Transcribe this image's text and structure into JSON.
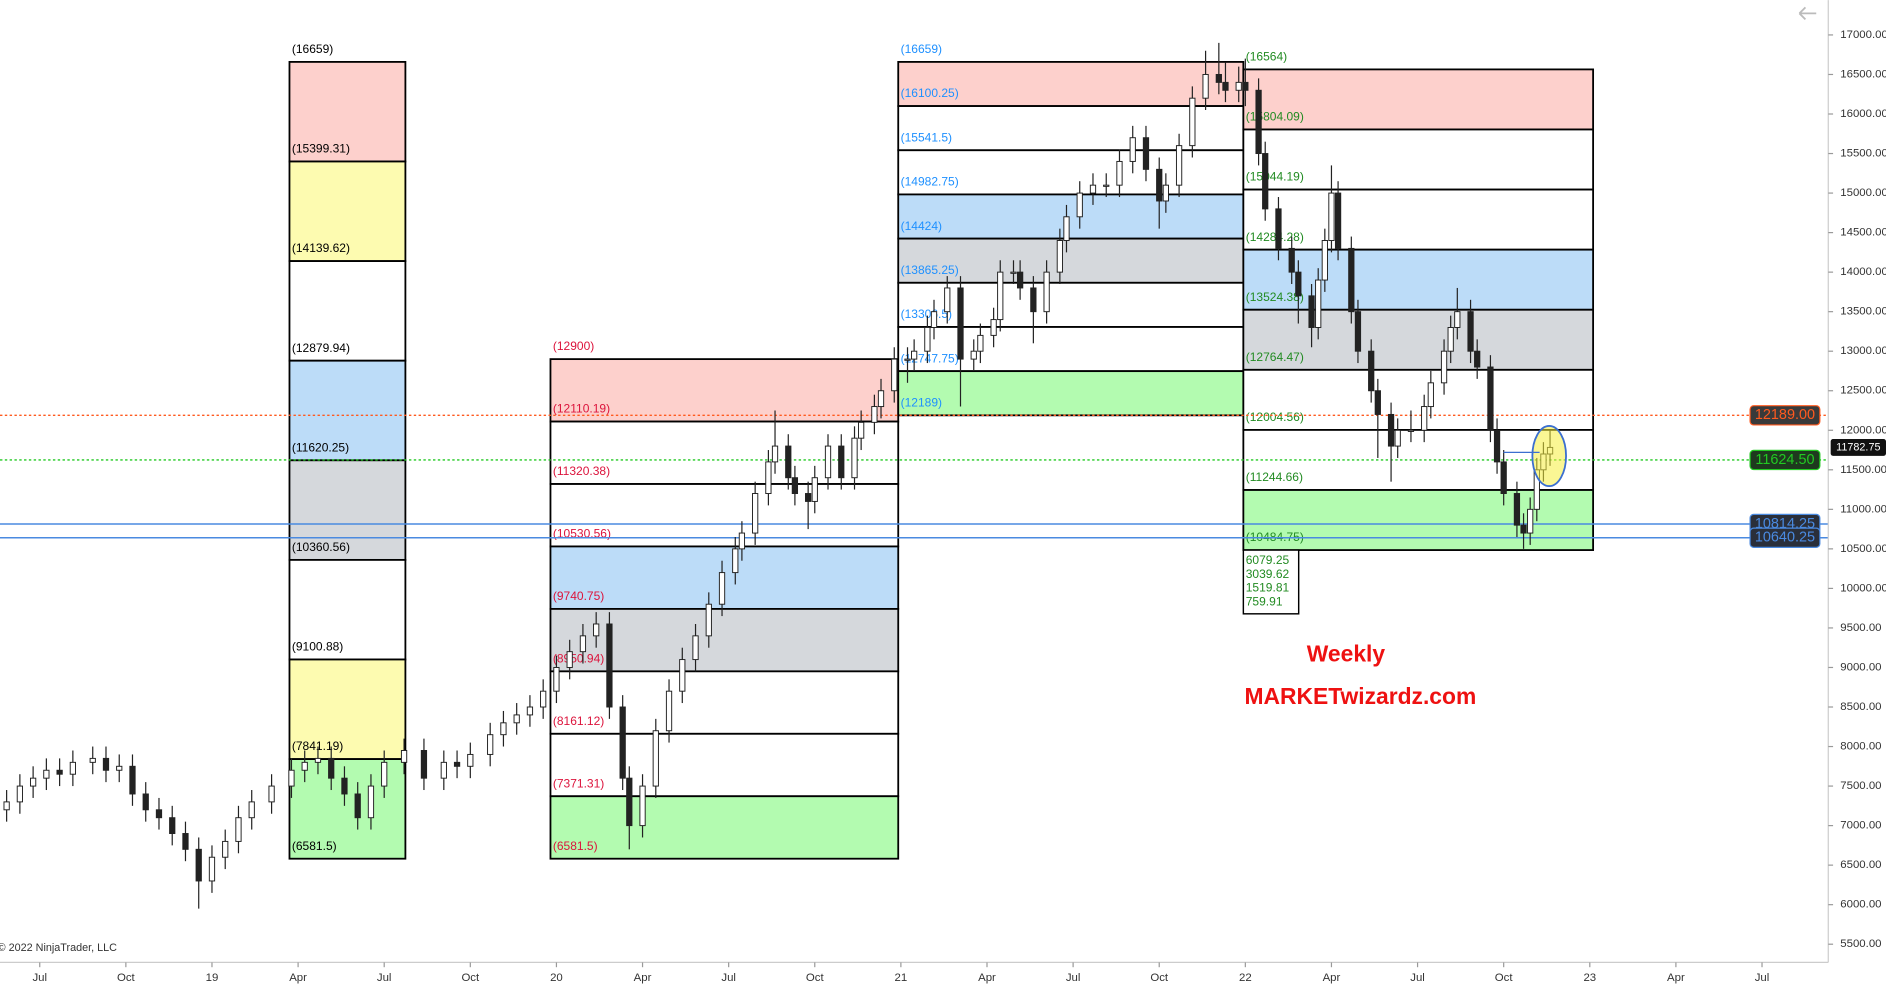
{
  "chart_data": {
    "type": "candlestick",
    "ylim": [
      5270,
      17440
    ],
    "yticks": [
      {
        "value": 5500,
        "label": "5500.00"
      },
      {
        "value": 6000,
        "label": "6000.00"
      },
      {
        "value": 6500,
        "label": "6500.00"
      },
      {
        "value": 7000,
        "label": "7000.00"
      },
      {
        "value": 7500,
        "label": "7500.00"
      },
      {
        "value": 8000,
        "label": "8000.00"
      },
      {
        "value": 8500,
        "label": "8500.00"
      },
      {
        "value": 9000,
        "label": "9000.00"
      },
      {
        "value": 9500,
        "label": "9500.00"
      },
      {
        "value": 10000,
        "label": "10000.00"
      },
      {
        "value": 10500,
        "label": "10500.00"
      },
      {
        "value": 11000,
        "label": "11000.00"
      },
      {
        "value": 11500,
        "label": "11500.00"
      },
      {
        "value": 12000,
        "label": "12000.00"
      },
      {
        "value": 12500,
        "label": "12500.00"
      },
      {
        "value": 13000,
        "label": "13000.00"
      },
      {
        "value": 13500,
        "label": "13500.00"
      },
      {
        "value": 14000,
        "label": "14000.00"
      },
      {
        "value": 14500,
        "label": "14500.00"
      },
      {
        "value": 15000,
        "label": "15000.00"
      },
      {
        "value": 15500,
        "label": "15500.00"
      },
      {
        "value": 16000,
        "label": "16000.00"
      },
      {
        "value": 16500,
        "label": "16500.00"
      },
      {
        "value": 17000,
        "label": "17000.00"
      }
    ],
    "xlim": [
      -6,
      270
    ],
    "xticks": [
      {
        "value": 0,
        "label": "Jul"
      },
      {
        "value": 13,
        "label": "Oct"
      },
      {
        "value": 26,
        "label": "19"
      },
      {
        "value": 39,
        "label": "Apr"
      },
      {
        "value": 52,
        "label": "Jul"
      },
      {
        "value": 65,
        "label": "Oct"
      },
      {
        "value": 78,
        "label": "20"
      },
      {
        "value": 91,
        "label": "Apr"
      },
      {
        "value": 104,
        "label": "Jul"
      },
      {
        "value": 117,
        "label": "Oct"
      },
      {
        "value": 130,
        "label": "21"
      },
      {
        "value": 143,
        "label": "Apr"
      },
      {
        "value": 156,
        "label": "Jul"
      },
      {
        "value": 169,
        "label": "Oct"
      },
      {
        "value": 182,
        "label": "22"
      },
      {
        "value": 195,
        "label": "Apr"
      },
      {
        "value": 208,
        "label": "Jul"
      },
      {
        "value": 221,
        "label": "Oct"
      },
      {
        "value": 234,
        "label": "23"
      },
      {
        "value": 247,
        "label": "Apr"
      },
      {
        "value": 260,
        "label": "Jul"
      }
    ],
    "x": [
      -5,
      -3,
      -1,
      1,
      3,
      5,
      8,
      10,
      12,
      14,
      16,
      18,
      20,
      22,
      24,
      26,
      28,
      30,
      32,
      35,
      38,
      40,
      42,
      44,
      46,
      48,
      50,
      52,
      55,
      58,
      61,
      63,
      65,
      68,
      70,
      72,
      74,
      76,
      78,
      80,
      82,
      84,
      86,
      88,
      89,
      91,
      93,
      95,
      97,
      99,
      101,
      103,
      105,
      106,
      108,
      110,
      111,
      113,
      114,
      116,
      117,
      119,
      121,
      123,
      124,
      126,
      127,
      129,
      131,
      132,
      134,
      135,
      137,
      139,
      141,
      142,
      144,
      145,
      147,
      148,
      150,
      152,
      154,
      155,
      157,
      159,
      161,
      163,
      165,
      167,
      169,
      170,
      172,
      174,
      176,
      178,
      179,
      181,
      182,
      184,
      185,
      187,
      189,
      190,
      192,
      193,
      194,
      195,
      196,
      198,
      199,
      201,
      202,
      204,
      205,
      207,
      209,
      210,
      212,
      213,
      214,
      216,
      217,
      219,
      220,
      221,
      223,
      224,
      225,
      226,
      227,
      228
    ],
    "ohlc": [
      [
        7200,
        7450,
        7050,
        7300
      ],
      [
        7300,
        7650,
        7150,
        7500
      ],
      [
        7500,
        7750,
        7350,
        7600
      ],
      [
        7600,
        7850,
        7450,
        7700
      ],
      [
        7700,
        7850,
        7500,
        7650
      ],
      [
        7650,
        7950,
        7500,
        7800
      ],
      [
        7800,
        8000,
        7650,
        7850
      ],
      [
        7850,
        8000,
        7550,
        7700
      ],
      [
        7700,
        7900,
        7550,
        7750
      ],
      [
        7750,
        7900,
        7250,
        7400
      ],
      [
        7400,
        7550,
        7050,
        7200
      ],
      [
        7200,
        7350,
        6950,
        7100
      ],
      [
        7100,
        7250,
        6750,
        6900
      ],
      [
        6900,
        7050,
        6550,
        6700
      ],
      [
        6700,
        6850,
        5950,
        6300
      ],
      [
        6300,
        6750,
        6150,
        6600
      ],
      [
        6600,
        6950,
        6450,
        6800
      ],
      [
        6800,
        7250,
        6650,
        7100
      ],
      [
        7100,
        7450,
        6950,
        7300
      ],
      [
        7300,
        7650,
        7150,
        7500
      ],
      [
        7500,
        7850,
        7350,
        7700
      ],
      [
        7700,
        7950,
        7550,
        7800
      ],
      [
        7800,
        8000,
        7650,
        7850
      ],
      [
        7850,
        8000,
        7450,
        7600
      ],
      [
        7600,
        7750,
        7250,
        7400
      ],
      [
        7400,
        7550,
        6950,
        7100
      ],
      [
        7100,
        7650,
        6950,
        7500
      ],
      [
        7500,
        7950,
        7350,
        7800
      ],
      [
        7800,
        8100,
        7650,
        7950
      ],
      [
        7950,
        8100,
        7450,
        7600
      ],
      [
        7600,
        7950,
        7450,
        7800
      ],
      [
        7800,
        7950,
        7600,
        7750
      ],
      [
        7750,
        8050,
        7600,
        7900
      ],
      [
        7900,
        8300,
        7750,
        8150
      ],
      [
        8150,
        8450,
        8000,
        8300
      ],
      [
        8300,
        8550,
        8150,
        8400
      ],
      [
        8400,
        8650,
        8250,
        8500
      ],
      [
        8500,
        8850,
        8350,
        8700
      ],
      [
        8700,
        9150,
        8550,
        9000
      ],
      [
        9000,
        9350,
        8850,
        9200
      ],
      [
        9200,
        9550,
        9050,
        9400
      ],
      [
        9400,
        9700,
        9250,
        9550
      ],
      [
        9550,
        9700,
        8350,
        8500
      ],
      [
        8500,
        8650,
        7450,
        7600
      ],
      [
        7600,
        7750,
        6700,
        7000
      ],
      [
        7000,
        7650,
        6850,
        7500
      ],
      [
        7500,
        8350,
        7350,
        8200
      ],
      [
        8200,
        8850,
        8050,
        8700
      ],
      [
        8700,
        9250,
        8550,
        9100
      ],
      [
        9100,
        9550,
        8950,
        9400
      ],
      [
        9400,
        9950,
        9250,
        9800
      ],
      [
        9800,
        10350,
        9650,
        10200
      ],
      [
        10200,
        10650,
        10050,
        10500
      ],
      [
        10500,
        10850,
        10350,
        10700
      ],
      [
        10700,
        11350,
        10550,
        11200
      ],
      [
        11200,
        11750,
        11050,
        11600
      ],
      [
        11600,
        12250,
        11450,
        11800
      ],
      [
        11800,
        11950,
        11250,
        11400
      ],
      [
        11400,
        11550,
        11050,
        11200
      ],
      [
        11200,
        11350,
        10750,
        11100
      ],
      [
        11100,
        11550,
        10950,
        11400
      ],
      [
        11400,
        11950,
        11250,
        11800
      ],
      [
        11800,
        11950,
        11250,
        11400
      ],
      [
        11400,
        12050,
        11250,
        11900
      ],
      [
        11900,
        12250,
        11750,
        12100
      ],
      [
        12100,
        12450,
        11950,
        12300
      ],
      [
        12300,
        12650,
        12150,
        12500
      ],
      [
        12500,
        13050,
        12350,
        12900
      ],
      [
        12900,
        13050,
        12600,
        12900
      ],
      [
        12900,
        13150,
        12750,
        13000
      ],
      [
        13000,
        13450,
        12850,
        13300
      ],
      [
        13300,
        13650,
        13150,
        13500
      ],
      [
        13500,
        13950,
        13350,
        13800
      ],
      [
        13800,
        13950,
        12300,
        12900
      ],
      [
        12900,
        13150,
        12750,
        13000
      ],
      [
        13000,
        13350,
        12850,
        13200
      ],
      [
        13200,
        13550,
        13050,
        13400
      ],
      [
        13400,
        14150,
        13250,
        14000
      ],
      [
        14000,
        14150,
        13850,
        14000
      ],
      [
        14000,
        14150,
        13650,
        13800
      ],
      [
        13800,
        13950,
        13100,
        13500
      ],
      [
        13500,
        14150,
        13350,
        14000
      ],
      [
        14000,
        14550,
        13850,
        14400
      ],
      [
        14400,
        14850,
        14250,
        14700
      ],
      [
        14700,
        15150,
        14550,
        15000
      ],
      [
        15000,
        15250,
        14850,
        15100
      ],
      [
        15100,
        15250,
        14950,
        15100
      ],
      [
        15100,
        15550,
        14950,
        15400
      ],
      [
        15400,
        15850,
        15250,
        15700
      ],
      [
        15700,
        15850,
        15150,
        15300
      ],
      [
        15300,
        15450,
        14550,
        14900
      ],
      [
        14900,
        15250,
        14750,
        15100
      ],
      [
        15100,
        15750,
        14950,
        15600
      ],
      [
        15600,
        16350,
        15450,
        16200
      ],
      [
        16200,
        16800,
        16050,
        16500
      ],
      [
        16500,
        16900,
        16250,
        16400
      ],
      [
        16400,
        16650,
        16150,
        16300
      ],
      [
        16300,
        16600,
        16150,
        16400
      ],
      [
        16400,
        16700,
        16100,
        16300
      ],
      [
        16300,
        16450,
        15350,
        15500
      ],
      [
        15500,
        15650,
        14650,
        14800
      ],
      [
        14800,
        14950,
        14150,
        14300
      ],
      [
        14300,
        14450,
        13850,
        14000
      ],
      [
        14000,
        14150,
        13350,
        13700
      ],
      [
        13700,
        13850,
        13050,
        13300
      ],
      [
        13300,
        14050,
        13150,
        13900
      ],
      [
        13900,
        14550,
        13750,
        14400
      ],
      [
        14400,
        15350,
        14250,
        15000
      ],
      [
        15000,
        15150,
        14150,
        14300
      ],
      [
        14300,
        14450,
        13350,
        13500
      ],
      [
        13500,
        13650,
        12850,
        13000
      ],
      [
        13000,
        13150,
        12350,
        12500
      ],
      [
        12500,
        12650,
        11650,
        12200
      ],
      [
        12200,
        12350,
        11350,
        11800
      ],
      [
        11800,
        12150,
        11650,
        12000
      ],
      [
        12000,
        12250,
        11850,
        12000
      ],
      [
        12000,
        12450,
        11850,
        12300
      ],
      [
        12300,
        12750,
        12150,
        12600
      ],
      [
        12600,
        13150,
        12450,
        13000
      ],
      [
        13000,
        13450,
        12850,
        13300
      ],
      [
        13300,
        13800,
        13150,
        13500
      ],
      [
        13500,
        13650,
        12850,
        13000
      ],
      [
        13000,
        13150,
        12650,
        12800
      ],
      [
        12800,
        12950,
        11850,
        12000
      ],
      [
        12000,
        12150,
        11450,
        11600
      ],
      [
        11600,
        11750,
        11050,
        11200
      ],
      [
        11200,
        11350,
        10650,
        10800
      ],
      [
        10800,
        10950,
        10500,
        10700
      ],
      [
        10700,
        11150,
        10550,
        11000
      ],
      [
        11000,
        11650,
        10850,
        11500
      ],
      [
        11500,
        11850,
        11350,
        11700
      ],
      [
        11700,
        12000,
        11550,
        11783
      ]
    ],
    "zones": [
      {
        "x_range": [
          37.7,
          55.2
        ],
        "text_color": "#000000",
        "levels": [
          16659,
          15399.31,
          14139.62,
          12879.94,
          11620.25,
          10360.56,
          9100.88,
          7841.19,
          6581.5
        ],
        "labels": [
          "(16659)",
          "(15399.31)",
          "(14139.62)",
          "(12879.94)",
          "(11620.25)",
          "(10360.56)",
          "(9100.88)",
          "(7841.19)",
          "(6581.5)"
        ],
        "fills": [
          "#fdd0cc",
          "#fdfbb0",
          "#ffffff",
          "#bcdcf8",
          "#d5d8dc",
          "#ffffff",
          "#fdfbb0",
          "#b3fbb0"
        ]
      },
      {
        "x_range": [
          77.1,
          129.6
        ],
        "text_color": "#dc143c",
        "levels": [
          12900,
          12110.19,
          11320.38,
          10530.56,
          9740.75,
          8950.94,
          8161.12,
          7371.31,
          6581.5
        ],
        "labels": [
          "(12900)",
          "(12110.19)",
          "(11320.38)",
          "(10530.56)",
          "(9740.75)",
          "(8950.94)",
          "(8161.12)",
          "(7371.31)",
          "(6581.5)"
        ],
        "fills": [
          "#fdd0cc",
          "#ffffff",
          "#ffffff",
          "#bcdcf8",
          "#d5d8dc",
          "#ffffff",
          "#ffffff",
          "#b3fbb0"
        ]
      },
      {
        "x_range": [
          129.6,
          181.7
        ],
        "text_color": "#1e90ff",
        "levels": [
          16659,
          16100.25,
          15541.5,
          14982.75,
          14424,
          13865.25,
          13306.5,
          12747.75,
          12189
        ],
        "labels": [
          "(16659)",
          "(16100.25)",
          "(15541.5)",
          "(14982.75)",
          "(14424)",
          "(13865.25)",
          "(13306.5)",
          "(12747.75)",
          "(12189)"
        ],
        "fills": [
          "#fdd0cc",
          "#ffffff",
          "#ffffff",
          "#bcdcf8",
          "#d5d8dc",
          "#ffffff",
          "#ffffff",
          "#b3fbb0"
        ]
      },
      {
        "x_range": [
          181.7,
          234.5
        ],
        "text_color": "#228b22",
        "levels": [
          16564,
          15804.09,
          15044.19,
          14284.28,
          13524.38,
          12764.47,
          12004.56,
          11244.66,
          10484.75
        ],
        "labels": [
          "(16564)",
          "(15804.09)",
          "(15044.19)",
          "(14284.28)",
          "(13524.38)",
          "(12764.47)",
          "(12004.56)",
          "(11244.66)",
          "(10484.75)"
        ],
        "fills": [
          "#fdd0cc",
          "#ffffff",
          "#ffffff",
          "#bcdcf8",
          "#d5d8dc",
          "#ffffff",
          "#ffffff",
          "#b3fbb0"
        ],
        "extra_values": [
          6079.25,
          3039.62,
          1519.81,
          759.91
        ]
      }
    ],
    "hlines": [
      {
        "value": 12189,
        "label": "12189.00",
        "color": "#ff5a1f",
        "dash": "2,2",
        "box": "#3a3a3a"
      },
      {
        "value": 11624.5,
        "label": "11624.50",
        "color": "#22c922",
        "dash": "2,2",
        "box": "#1e3a1e"
      },
      {
        "value": 10814.25,
        "label": "10814.25",
        "color": "#4a8ae0",
        "dash": "",
        "box": "#2a2f3a"
      },
      {
        "value": 10640.25,
        "label": "10640.25",
        "color": "#4a8ae0",
        "dash": "",
        "box": "#2a2f3a"
      }
    ],
    "last_price": {
      "value": 11782.75,
      "label": "11782.75"
    },
    "annotations": [
      "Weekly",
      "MARKETwizardz.com"
    ],
    "copyright": "© 2022 NinjaTrader, LLC"
  }
}
